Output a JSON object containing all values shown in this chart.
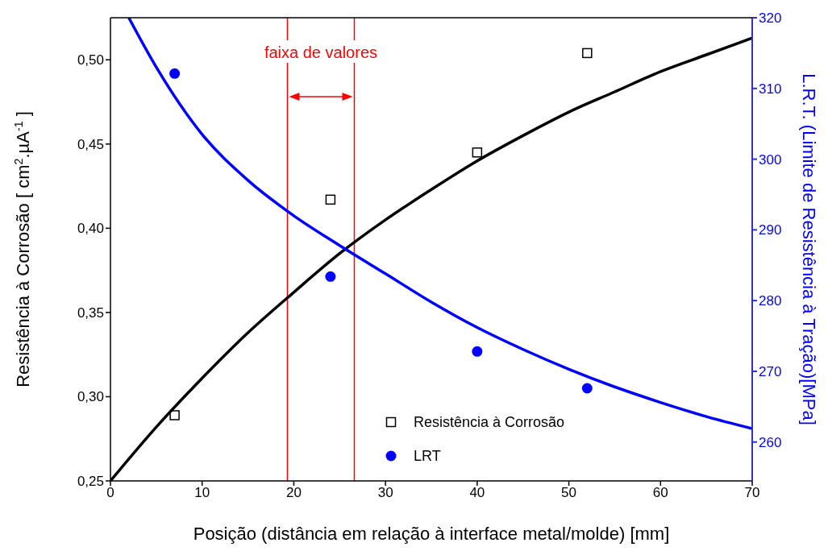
{
  "chart_data": {
    "type": "scatter",
    "xlabel": "Posição (distância em relação à interface metal/molde) [mm]",
    "ylabel": "Resistência à Corrosão [ cm$^{2}$.µA$^{-1}$ ]",
    "y2label": "L.R.T. (Limite de Resistência à Tração)[MPa]",
    "annotations": [
      "faixa de valores"
    ],
    "x": [
      7,
      24,
      40,
      52
    ],
    "series": [
      {
        "name": "Resistência à Corrosão",
        "color": "#000000",
        "marker": "square",
        "values": [
          0.289,
          0.417,
          0.445,
          0.504
        ]
      },
      {
        "name": "LRT",
        "color": "#0000ff",
        "marker": "circle",
        "axis": "y2",
        "values": [
          312.1,
          283.4,
          272.8,
          267.6
        ]
      },
      {
        "type": "line",
        "color": "#000000",
        "x": [
          0,
          5,
          10,
          15,
          20,
          25,
          30,
          35,
          40,
          45,
          50,
          55,
          60,
          65,
          70
        ],
        "values": [
          0.25,
          0.282,
          0.311,
          0.338,
          0.362,
          0.385,
          0.405,
          0.423,
          0.44,
          0.455,
          0.469,
          0.481,
          0.493,
          0.503,
          0.513
        ]
      },
      {
        "type": "line",
        "color": "#0000ff",
        "axis": "y2",
        "x": [
          2,
          5,
          10,
          15,
          20,
          25,
          30,
          35,
          40,
          45,
          50,
          55,
          60,
          65,
          70
        ],
        "values": [
          320,
          313,
          303.5,
          297,
          292,
          287.8,
          283.8,
          279.8,
          276.2,
          273.1,
          270.3,
          267.8,
          265.6,
          263.6,
          261.9
        ]
      }
    ],
    "xlim": [
      0,
      70
    ],
    "xticks": [
      0,
      10,
      20,
      30,
      40,
      50,
      60,
      70
    ],
    "ylim": [
      0.25,
      0.525
    ],
    "yticks": [
      {
        "value": 0.25,
        "label": "0,25"
      },
      {
        "value": 0.3,
        "label": "0,30"
      },
      {
        "value": 0.35,
        "label": "0,35"
      },
      {
        "value": 0.4,
        "label": "0,40"
      },
      {
        "value": 0.45,
        "label": "0,45"
      },
      {
        "value": 0.5,
        "label": "0,50"
      }
    ],
    "y2lim": [
      254.5,
      320
    ],
    "y2ticks": [
      260,
      270,
      280,
      290,
      300,
      310,
      320
    ],
    "ref_lines": [
      {
        "axis": "x",
        "value": 19.3,
        "color": "#ff0000"
      },
      {
        "axis": "x",
        "value": 26.6,
        "color": "#ff0000"
      }
    ],
    "legend": "bottom",
    "grid": false
  }
}
